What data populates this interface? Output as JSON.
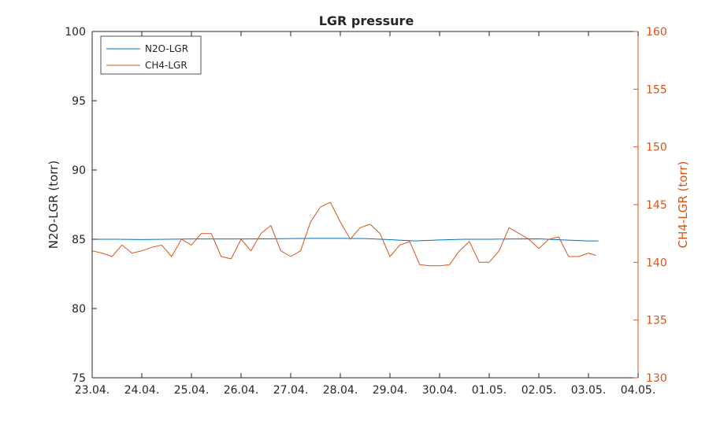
{
  "chart_data": {
    "type": "line",
    "title": "LGR pressure",
    "x_tick_labels": [
      "23.04.",
      "24.04.",
      "25.04.",
      "26.04.",
      "27.04.",
      "28.04.",
      "29.04.",
      "30.04.",
      "01.05.",
      "02.05.",
      "03.05.",
      "04.05."
    ],
    "xlim_days": [
      0,
      11
    ],
    "left_axis": {
      "label": "N2O-LGR (torr)",
      "ylim": [
        75,
        100
      ],
      "ticks": [
        75,
        80,
        85,
        90,
        95,
        100
      ],
      "color": "#262626"
    },
    "right_axis": {
      "label": "CH4-LGR (torr)",
      "ylim": [
        130,
        160
      ],
      "ticks": [
        130,
        135,
        140,
        145,
        150,
        155,
        160
      ],
      "color": "#d95319"
    },
    "legend": {
      "location": "top-left"
    },
    "series": [
      {
        "name": "N2O-LGR",
        "axis": "left",
        "color": "#0072bd",
        "x": [
          0,
          0.5,
          1.0,
          1.5,
          2.0,
          2.5,
          3.0,
          3.5,
          4.0,
          4.5,
          5.0,
          5.5,
          6.0,
          6.5,
          7.0,
          7.5,
          8.0,
          8.5,
          9.0,
          9.5,
          10.0,
          10.2
        ],
        "y": [
          85.0,
          85.0,
          84.98,
          85.0,
          85.02,
          85.02,
          85.02,
          85.03,
          85.05,
          85.06,
          85.06,
          85.05,
          84.97,
          84.88,
          84.95,
          85.0,
          85.0,
          85.02,
          85.03,
          84.95,
          84.88,
          84.88
        ]
      },
      {
        "name": "CH4-LGR",
        "axis": "right",
        "color": "#d95319",
        "x": [
          0,
          0.2,
          0.4,
          0.6,
          0.8,
          1.0,
          1.2,
          1.4,
          1.6,
          1.8,
          2.0,
          2.2,
          2.4,
          2.6,
          2.8,
          3.0,
          3.2,
          3.4,
          3.6,
          3.8,
          4.0,
          4.2,
          4.4,
          4.6,
          4.8,
          5.0,
          5.2,
          5.4,
          5.6,
          5.8,
          6.0,
          6.2,
          6.4,
          6.6,
          6.8,
          7.0,
          7.2,
          7.4,
          7.6,
          7.8,
          8.0,
          8.2,
          8.4,
          8.6,
          8.8,
          9.0,
          9.2,
          9.4,
          9.6,
          9.8,
          10.0,
          10.15
        ],
        "y": [
          141.0,
          140.8,
          140.5,
          141.5,
          140.8,
          141.0,
          141.3,
          141.5,
          140.5,
          142.0,
          141.5,
          142.5,
          142.5,
          140.5,
          140.3,
          142.0,
          141.0,
          142.5,
          143.2,
          141.0,
          140.5,
          141.0,
          143.5,
          144.8,
          145.2,
          143.5,
          142.0,
          143.0,
          143.3,
          142.5,
          140.5,
          141.5,
          141.8,
          139.8,
          139.7,
          139.7,
          139.8,
          141.0,
          141.8,
          140.0,
          140.0,
          141.0,
          143.0,
          142.5,
          142.0,
          141.2,
          142.0,
          142.2,
          140.5,
          140.5,
          140.8,
          140.6
        ]
      }
    ]
  }
}
